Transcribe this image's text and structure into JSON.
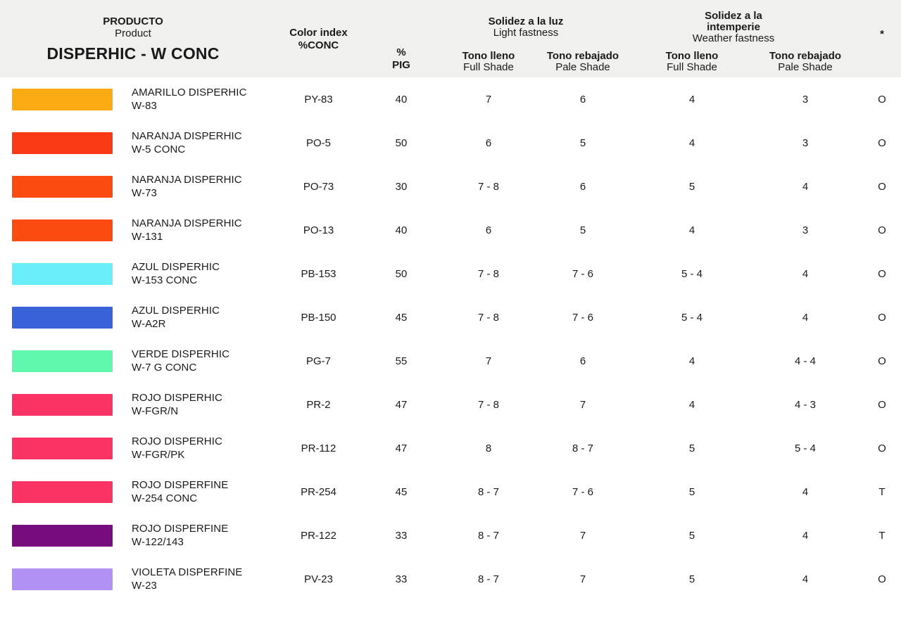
{
  "header": {
    "producto": "PRODUCTO",
    "product": "Product",
    "series_title": "DISPERHIC - W CONC",
    "color_index_line1": "Color index",
    "color_index_line2": "%CONC",
    "pig_line1": "%",
    "pig_line2": "PIG",
    "light": {
      "title": "Solidez a la luz",
      "subtitle": "Light fastness"
    },
    "weather": {
      "title_line1": "Solidez a la",
      "title_line2": "intemperie",
      "subtitle": "Weather fastness"
    },
    "full_shade": {
      "es": "Tono lleno",
      "en": "Full Shade"
    },
    "pale_shade": {
      "es": "Tono rebajado",
      "en": "Pale Shade"
    },
    "asterisk": "*"
  },
  "rows": [
    {
      "swatch": "#FCAC12",
      "name_line1": "AMARILLO DISPERHIC",
      "name_line2": "W-83",
      "color_index": "PY-83",
      "pig": "40",
      "light_full": "7",
      "light_pale": "6",
      "weather_full": "4",
      "weather_pale": "3",
      "mark": "O"
    },
    {
      "swatch": "#FA3A14",
      "name_line1": "NARANJA DISPERHIC",
      "name_line2": "W-5 CONC",
      "color_index": "PO-5",
      "pig": "50",
      "light_full": "6",
      "light_pale": "5",
      "weather_full": "4",
      "weather_pale": "3",
      "mark": "O"
    },
    {
      "swatch": "#FC4B10",
      "name_line1": "NARANJA DISPERHIC",
      "name_line2": "W-73",
      "color_index": "PO-73",
      "pig": "30",
      "light_full": "7 - 8",
      "light_pale": "6",
      "weather_full": "5",
      "weather_pale": "4",
      "mark": "O"
    },
    {
      "swatch": "#FC4B10",
      "name_line1": "NARANJA DISPERHIC",
      "name_line2": "W-131",
      "color_index": "PO-13",
      "pig": "40",
      "light_full": "6",
      "light_pale": "5",
      "weather_full": "4",
      "weather_pale": "3",
      "mark": "O"
    },
    {
      "swatch": "#68EFF9",
      "name_line1": "AZUL DISPERHIC",
      "name_line2": "W-153 CONC",
      "color_index": "PB-153",
      "pig": "50",
      "light_full": "7 - 8",
      "light_pale": "7 - 6",
      "weather_full": "5 - 4",
      "weather_pale": "4",
      "mark": "O"
    },
    {
      "swatch": "#3A62D8",
      "name_line1": "AZUL DISPERHIC",
      "name_line2": "W-A2R",
      "color_index": "PB-150",
      "pig": "45",
      "light_full": "7 - 8",
      "light_pale": "7 - 6",
      "weather_full": "5 - 4",
      "weather_pale": "4",
      "mark": "O"
    },
    {
      "swatch": "#60F8AD",
      "name_line1": "VERDE DISPERHIC",
      "name_line2": "W-7 G CONC",
      "color_index": "PG-7",
      "pig": "55",
      "light_full": "7",
      "light_pale": "6",
      "weather_full": "4",
      "weather_pale": "4 - 4",
      "mark": "O"
    },
    {
      "swatch": "#FB3365",
      "name_line1": "ROJO DISPERHIC",
      "name_line2": "W-FGR/N",
      "color_index": "PR-2",
      "pig": "47",
      "light_full": "7 - 8",
      "light_pale": "7",
      "weather_full": "4",
      "weather_pale": "4 - 3",
      "mark": "O"
    },
    {
      "swatch": "#FB3365",
      "name_line1": "ROJO DISPERHIC",
      "name_line2": "W-FGR/PK",
      "color_index": "PR-112",
      "pig": "47",
      "light_full": "8",
      "light_pale": "8 - 7",
      "weather_full": "5",
      "weather_pale": "5 - 4",
      "mark": "O"
    },
    {
      "swatch": "#FB3365",
      "name_line1": "ROJO DISPERFINE",
      "name_line2": "W-254 CONC",
      "color_index": "PR-254",
      "pig": "45",
      "light_full": "8 - 7",
      "light_pale": "7 - 6",
      "weather_full": "5",
      "weather_pale": "4",
      "mark": "T"
    },
    {
      "swatch": "#760C7D",
      "name_line1": "ROJO DISPERFINE",
      "name_line2": "W-122/143",
      "color_index": "PR-122",
      "pig": "33",
      "light_full": "8 - 7",
      "light_pale": "7",
      "weather_full": "5",
      "weather_pale": "4",
      "mark": "T"
    },
    {
      "swatch": "#B192F4",
      "name_line1": "VIOLETA DISPERFINE",
      "name_line2": "W-23",
      "color_index": "PV-23",
      "pig": "33",
      "light_full": "8 - 7",
      "light_pale": "7",
      "weather_full": "5",
      "weather_pale": "4",
      "mark": "O"
    }
  ]
}
